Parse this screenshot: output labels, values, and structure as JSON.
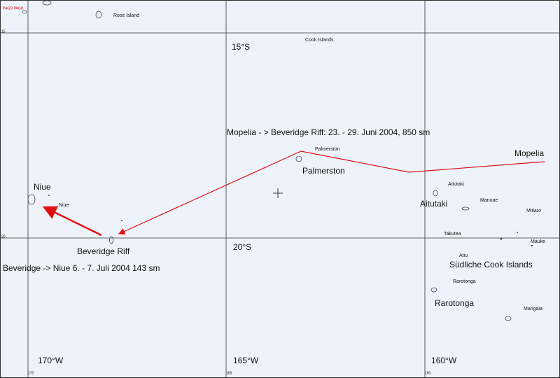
{
  "map": {
    "grid_labels": {
      "lat_15": "15°S",
      "lat_20": "20°S",
      "lon_170": "170°W",
      "lon_165": "165°W",
      "lon_160": "160°W",
      "edge_15": "15",
      "edge_20": "20",
      "edge_170": "170",
      "edge_165": "165",
      "edge_160": "160"
    },
    "places": {
      "pago_pago": "PAGO PAGO",
      "rose_island": "Rose Island",
      "cook_islands": "Cook Islands",
      "palmerston_small": "Palmerston",
      "palmerston": "Palmerston",
      "mopelia": "Mopelia",
      "niue": "Niue",
      "niue_small": "Niue",
      "aitutaki_small": "Aitutaki",
      "aitutaki": "Aitutaki",
      "manuae": "Manuae",
      "mitiaro": "Mitiaro",
      "takutea": "Takutea",
      "mauke": "Mauke",
      "beveridge_riff": "Beveridge Riff",
      "atiu": "Atiu",
      "suedliche_cook_islands": "Südliche Cook Islands",
      "rarotonga_small": "Rarotonga",
      "rarotonga": "Rarotonga",
      "mangaia": "Mangaia"
    },
    "routes": {
      "leg1": "Mopelia - > Beveridge Riff: 23. - 29. Juni 2004, 850 sm",
      "leg2": "Beveridge -> Niue 6. - 7. Juli 2004 143 sm"
    }
  }
}
